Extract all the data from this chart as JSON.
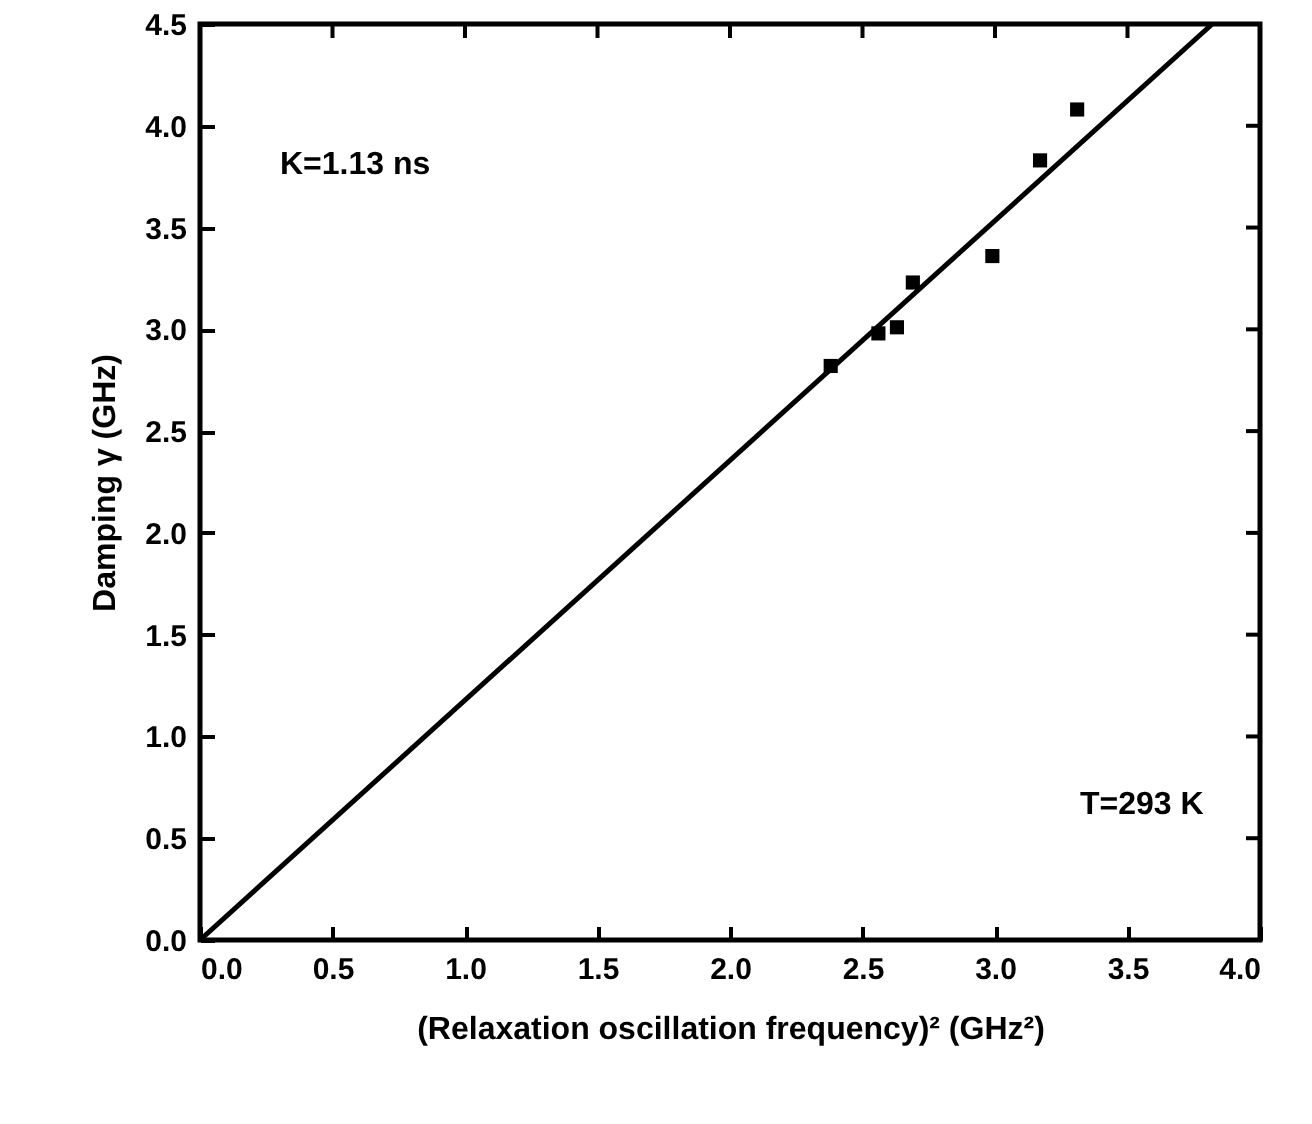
{
  "chart_data": {
    "type": "scatter",
    "xlabel": "(Relaxation oscillation frequency)² (GHz²)",
    "ylabel": "Damping γ (GHz)",
    "annotations": [
      "K=1.13 ns",
      "T=293 K"
    ],
    "marker": "square",
    "series": [
      {
        "color": "#000000",
        "x": [
          2.38,
          2.56,
          2.63,
          2.69,
          2.99,
          3.17,
          3.31
        ],
        "values": [
          2.82,
          2.98,
          3.01,
          3.23,
          3.36,
          3.83,
          4.08
        ]
      },
      {
        "type": "line",
        "marker": "none",
        "color": "#000000",
        "x": [
          0,
          3.82
        ],
        "values": [
          0,
          4.5
        ]
      }
    ],
    "xlim": [
      0,
      4
    ],
    "ylim": [
      0,
      4.5
    ],
    "xticks": [
      {
        "value": 0,
        "label": "0.0"
      },
      {
        "value": 0.5,
        "label": "0.5"
      },
      {
        "value": 1,
        "label": "1.0"
      },
      {
        "value": 1.5,
        "label": "1.5"
      },
      {
        "value": 2,
        "label": "2.0"
      },
      {
        "value": 2.5,
        "label": "2.5"
      },
      {
        "value": 3,
        "label": "3.0"
      },
      {
        "value": 3.5,
        "label": "3.5"
      },
      {
        "value": 4,
        "label": "4.0"
      }
    ],
    "yticks": [
      {
        "value": 0,
        "label": "0.0"
      },
      {
        "value": 0.5,
        "label": "0.5"
      },
      {
        "value": 1,
        "label": "1.0"
      },
      {
        "value": 1.5,
        "label": "1.5"
      },
      {
        "value": 2,
        "label": "2.0"
      },
      {
        "value": 2.5,
        "label": "2.5"
      },
      {
        "value": 3,
        "label": "3.0"
      },
      {
        "value": 3.5,
        "label": "3.5"
      },
      {
        "value": 4,
        "label": "4.0"
      },
      {
        "value": 4.5,
        "label": "4.5"
      }
    ],
    "grid": false
  }
}
